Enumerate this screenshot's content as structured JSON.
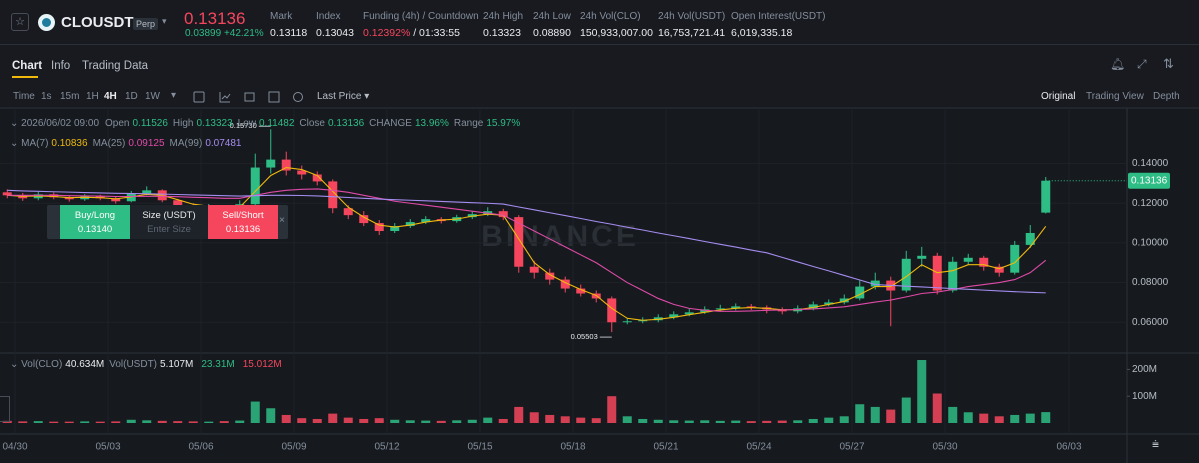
{
  "header": {
    "symbol": "CLOUSDT",
    "badge": "Perp",
    "price": "0.13136",
    "change": "0.03899",
    "change_pct": "+42.21%",
    "stats": [
      {
        "label": "Mark",
        "value": "0.13118"
      },
      {
        "label": "Index",
        "value": "0.13043"
      },
      {
        "label": "Funding (4h) / Countdown",
        "value": "0.12392%",
        "extra": "/ 01:33:55"
      },
      {
        "label": "24h High",
        "value": "0.13323"
      },
      {
        "label": "24h Low",
        "value": "0.08890"
      },
      {
        "label": "24h Vol(CLO)",
        "value": "150,933,007.00"
      },
      {
        "label": "24h Vol(USDT)",
        "value": "16,753,721.41"
      },
      {
        "label": "Open Interest(USDT)",
        "value": "6,019,335.18"
      }
    ]
  },
  "tabs": [
    "Chart",
    "Info",
    "Trading Data"
  ],
  "toolbar": {
    "intervals": [
      "Time",
      "1s",
      "15m",
      "1H",
      "4H",
      "1D",
      "1W"
    ],
    "price_type": "Last Price",
    "views": [
      "Original",
      "Trading View",
      "Depth"
    ]
  },
  "legend": {
    "time": "2026/06/02 09:00",
    "open": "Open",
    "high": "High",
    "low": "Low",
    "close": "Close",
    "change": "CHANGE",
    "change_value": "13.96%",
    "range": "Range",
    "range_value": "15.97%"
  },
  "order_widget": {
    "buy": "Buy/Long",
    "buy_price": "0.13140",
    "size": "Size (USDT)",
    "size_placeholder": "Enter Size",
    "sell": "Sell/Short",
    "sell_price": "0.13136"
  },
  "watermark": "BINANCE",
  "chart_data": {
    "type": "candlestick",
    "up_color": "#2ebd85",
    "down_color": "#f6465d",
    "open": [
      0.1255,
      0.124,
      0.1225,
      0.1245,
      0.123,
      0.122,
      0.1235,
      0.1225,
      0.121,
      0.125,
      0.1265,
      0.1215,
      0.119,
      0.1175,
      0.1185,
      0.116,
      0.1195,
      0.138,
      0.142,
      0.1365,
      0.1345,
      0.131,
      0.1175,
      0.114,
      0.11,
      0.106,
      0.1085,
      0.1105,
      0.112,
      0.111,
      0.113,
      0.1145,
      0.116,
      0.113,
      0.088,
      0.085,
      0.0815,
      0.077,
      0.0745,
      0.072,
      0.06,
      0.0605,
      0.061,
      0.0625,
      0.064,
      0.065,
      0.0665,
      0.067,
      0.068,
      0.0675,
      0.0665,
      0.0655,
      0.067,
      0.069,
      0.07,
      0.072,
      0.078,
      0.081,
      0.076,
      0.092,
      0.0935,
      0.076,
      0.0905,
      0.0925,
      0.088,
      0.085,
      0.099,
      0.11526
    ],
    "high": [
      0.127,
      0.1252,
      0.1258,
      0.1255,
      0.124,
      0.1246,
      0.1243,
      0.1232,
      0.1262,
      0.1285,
      0.127,
      0.1222,
      0.12,
      0.1196,
      0.119,
      0.1215,
      0.145,
      0.1573,
      0.146,
      0.139,
      0.136,
      0.132,
      0.119,
      0.116,
      0.1115,
      0.11,
      0.112,
      0.1135,
      0.113,
      0.1142,
      0.116,
      0.118,
      0.1172,
      0.114,
      0.091,
      0.087,
      0.083,
      0.079,
      0.076,
      0.073,
      0.0622,
      0.0625,
      0.064,
      0.0655,
      0.0668,
      0.068,
      0.0688,
      0.0695,
      0.0692,
      0.0685,
      0.0675,
      0.0685,
      0.0705,
      0.0715,
      0.074,
      0.081,
      0.085,
      0.083,
      0.096,
      0.098,
      0.095,
      0.093,
      0.0945,
      0.0935,
      0.0895,
      0.101,
      0.109,
      0.13323
    ],
    "low": [
      0.1225,
      0.1212,
      0.1215,
      0.122,
      0.1208,
      0.1212,
      0.1215,
      0.1198,
      0.1205,
      0.124,
      0.1205,
      0.118,
      0.1162,
      0.1165,
      0.1148,
      0.1152,
      0.119,
      0.135,
      0.134,
      0.132,
      0.129,
      0.115,
      0.112,
      0.1085,
      0.104,
      0.105,
      0.1075,
      0.1095,
      0.1098,
      0.1102,
      0.112,
      0.1135,
      0.1115,
      0.085,
      0.082,
      0.079,
      0.075,
      0.073,
      0.07,
      0.05503,
      0.059,
      0.0595,
      0.06,
      0.0615,
      0.063,
      0.0642,
      0.0655,
      0.066,
      0.0662,
      0.0645,
      0.064,
      0.0645,
      0.066,
      0.068,
      0.069,
      0.071,
      0.0765,
      0.058,
      0.075,
      0.088,
      0.074,
      0.075,
      0.089,
      0.086,
      0.083,
      0.084,
      0.0975,
      0.11482
    ],
    "close": [
      0.124,
      0.1225,
      0.1245,
      0.123,
      0.122,
      0.1235,
      0.1225,
      0.121,
      0.125,
      0.1265,
      0.1215,
      0.119,
      0.1175,
      0.1185,
      0.116,
      0.1195,
      0.138,
      0.142,
      0.1365,
      0.1345,
      0.131,
      0.1175,
      0.114,
      0.11,
      0.106,
      0.1085,
      0.1105,
      0.112,
      0.111,
      0.113,
      0.1145,
      0.116,
      0.113,
      0.088,
      0.085,
      0.0815,
      0.077,
      0.0745,
      0.072,
      0.06,
      0.0605,
      0.061,
      0.0625,
      0.064,
      0.065,
      0.0665,
      0.067,
      0.068,
      0.0675,
      0.0665,
      0.0655,
      0.067,
      0.069,
      0.07,
      0.072,
      0.078,
      0.081,
      0.076,
      0.092,
      0.0935,
      0.076,
      0.0905,
      0.0925,
      0.088,
      0.085,
      0.099,
      0.105,
      0.13136
    ],
    "volume": [
      8000000,
      6000000,
      7000000,
      5000000,
      5000000,
      6000000,
      5000000,
      6000000,
      12000000,
      10000000,
      8000000,
      7000000,
      6000000,
      5000000,
      7000000,
      9000000,
      80000000,
      55000000,
      30000000,
      18000000,
      15000000,
      35000000,
      20000000,
      15000000,
      18000000,
      12000000,
      10000000,
      9000000,
      8000000,
      10000000,
      12000000,
      20000000,
      15000000,
      60000000,
      40000000,
      30000000,
      25000000,
      20000000,
      18000000,
      100000000,
      25000000,
      15000000,
      12000000,
      10000000,
      9000000,
      10000000,
      8000000,
      9000000,
      7000000,
      8000000,
      9000000,
      10000000,
      15000000,
      20000000,
      25000000,
      70000000,
      60000000,
      50000000,
      95000000,
      235000000,
      110000000,
      60000000,
      40000000,
      35000000,
      25000000,
      30000000,
      35000000,
      40634000
    ],
    "series": [
      {
        "name": "MA(7)",
        "color": "#f0b90b",
        "values": [
          0.124,
          0.1235,
          0.1237,
          0.1234,
          0.1228,
          0.123,
          0.1228,
          0.1222,
          0.1232,
          0.1245,
          0.124,
          0.1218,
          0.1195,
          0.1185,
          0.1175,
          0.118,
          0.126,
          0.134,
          0.138,
          0.137,
          0.134,
          0.126,
          0.118,
          0.113,
          0.109,
          0.108,
          0.109,
          0.1105,
          0.1115,
          0.112,
          0.1135,
          0.1145,
          0.114,
          0.102,
          0.09,
          0.084,
          0.08,
          0.0765,
          0.0735,
          0.067,
          0.062,
          0.061,
          0.0615,
          0.0625,
          0.0638,
          0.065,
          0.0662,
          0.067,
          0.0674,
          0.067,
          0.0663,
          0.0663,
          0.0675,
          0.069,
          0.0705,
          0.074,
          0.078,
          0.078,
          0.083,
          0.089,
          0.085,
          0.086,
          0.089,
          0.089,
          0.087,
          0.09,
          0.098,
          0.10836
        ]
      },
      {
        "name": "MA(25)",
        "color": "#e04aa8",
        "values": [
          0.124,
          0.124,
          0.124,
          0.124,
          0.1238,
          0.1237,
          0.1236,
          0.1234,
          0.1234,
          0.1235,
          0.1235,
          0.1233,
          0.123,
          0.1228,
          0.1225,
          0.1225,
          0.124,
          0.1255,
          0.1265,
          0.127,
          0.1272,
          0.1265,
          0.1255,
          0.124,
          0.1225,
          0.121,
          0.12,
          0.119,
          0.118,
          0.117,
          0.116,
          0.115,
          0.114,
          0.11,
          0.106,
          0.102,
          0.098,
          0.094,
          0.09,
          0.085,
          0.08,
          0.076,
          0.072,
          0.069,
          0.067,
          0.066,
          0.0655,
          0.0655,
          0.0657,
          0.066,
          0.0662,
          0.0664,
          0.0667,
          0.0672,
          0.0678,
          0.069,
          0.0702,
          0.0712,
          0.0728,
          0.0745,
          0.0752,
          0.0765,
          0.078,
          0.079,
          0.08,
          0.0815,
          0.085,
          0.09125
        ]
      },
      {
        "name": "MA(99)",
        "color": "#a58cf0",
        "values": [
          0.1265,
          0.1262,
          0.126,
          0.1258,
          0.1256,
          0.1254,
          0.1252,
          0.125,
          0.1249,
          0.1248,
          0.1246,
          0.1244,
          0.1242,
          0.124,
          0.1238,
          0.1236,
          0.1238,
          0.124,
          0.124,
          0.1239,
          0.1237,
          0.1233,
          0.1229,
          0.1225,
          0.1221,
          0.1218,
          0.1215,
          0.1212,
          0.1209,
          0.1206,
          0.1203,
          0.12,
          0.1196,
          0.1181,
          0.1167,
          0.1152,
          0.1138,
          0.1123,
          0.1108,
          0.1094,
          0.1079,
          0.1065,
          0.105,
          0.1036,
          0.1022,
          0.1007,
          0.0993,
          0.0979,
          0.0964,
          0.095,
          0.0927,
          0.0904,
          0.0881,
          0.0859,
          0.0836,
          0.0813,
          0.079,
          0.0786,
          0.0782,
          0.0778,
          0.0774,
          0.077,
          0.0766,
          0.0762,
          0.0758,
          0.0754,
          0.0751,
          0.07481
        ]
      }
    ],
    "annotations": [
      {
        "text": "0.15730",
        "value": 0.1573
      },
      {
        "text": "0.05503",
        "value": 0.05503
      }
    ],
    "ylim": [
      0.045,
      0.166
    ],
    "yticks": [
      {
        "value": 0.14,
        "label": "0.14000"
      },
      {
        "value": 0.12,
        "label": "0.12000"
      },
      {
        "value": 0.1,
        "label": "0.10000"
      },
      {
        "value": 0.08,
        "label": "0.08000"
      },
      {
        "value": 0.06,
        "label": "0.06000"
      }
    ],
    "volume_ylim": [
      0,
      250000000
    ],
    "volume_ticks": [
      {
        "value": 200000000,
        "label": "200M"
      },
      {
        "value": 100000000,
        "label": "100M"
      }
    ],
    "volume_legend": [
      {
        "name": "Vol(CLO)",
        "value": "40.634M"
      },
      {
        "name": "Vol(USDT)",
        "value": "5.107M"
      },
      {
        "name": "",
        "value": "23.31M"
      },
      {
        "name": "",
        "value": "15.012M"
      }
    ],
    "xticks": [
      "04/30",
      "05/03",
      "05/06",
      "05/09",
      "05/12",
      "05/15",
      "05/18",
      "05/21",
      "05/24",
      "05/27",
      "05/30",
      "06/03"
    ],
    "grid": true
  }
}
